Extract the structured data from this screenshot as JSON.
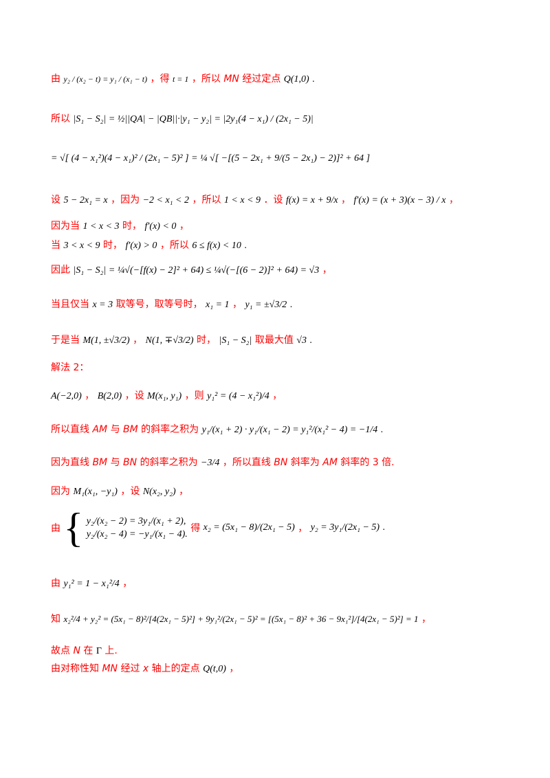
{
  "lines": {
    "l1": {
      "t1": "由",
      "t2": "，得",
      "t3": "，所以",
      "t4": "经过定点",
      "f1": "y₂ / (x₂ − t) = y₁ / (x₁ − t)",
      "eq": "t = 1",
      "mn": "MN",
      "q": "Q(1,0)",
      "end": "."
    },
    "l2": {
      "t1": "所以",
      "expr": "|S₁ − S₂| = ½||QA| − |QB||·|y₁ − y₂| = |2y₁(4 − x₁) / (2x₁ − 5)|"
    },
    "l3": {
      "expr": "= √[ (4 − x₁²)(4 − x₁)² / (2x₁ − 5)² ] = ¼ √[ −[(5 − 2x₁ + 9/(5 − 2x₁) − 2)]² + 64 ]"
    },
    "l4": {
      "t1": "设",
      "a": "5 − 2x₁ = x",
      "t2": "，因为",
      "b": "−2 < x₁ < 2",
      "t3": "，所以",
      "c": "1 < x < 9",
      "t4": "．设",
      "d": "f(x) = x + 9/x",
      "t5": "，",
      "e": "f′(x) = (x + 3)(x − 3) / x",
      "t6": "，"
    },
    "l5": {
      "t1": "因为当",
      "a": "1 < x < 3",
      "t2": "时，",
      "b": "f′(x) < 0",
      "t3": "，"
    },
    "l6": {
      "t1": "当",
      "a": "3 < x < 9",
      "t2": "时，",
      "b": "f′(x) > 0",
      "t3": "，所以",
      "c": "6 ≤ f(x) < 10",
      "t4": "."
    },
    "l7": {
      "t1": "因此",
      "expr": "|S₁ − S₂| = ¼√(−[f(x) − 2]² + 64) ≤ ¼√(−[(6 − 2)]² + 64) = √3",
      "t2": "，"
    },
    "l8": {
      "t1": "当且仅当",
      "a": "x = 3",
      "t2": "取等号，取等号时，",
      "b": "x₁ = 1",
      "t3": "，",
      "c": "y₁ = ±√3/2",
      "t4": "."
    },
    "l9": {
      "t1": "于是当",
      "a": "M(1, ±√3/2)",
      "t2": "，",
      "b": "N(1, ∓√3/2)",
      "t3": "时，",
      "c": "|S₁ − S₂|",
      "t4": "取最大值",
      "d": "√3",
      "t5": "."
    },
    "l10": {
      "t1": "解法 2："
    },
    "l11": {
      "a": "A(−2,0)",
      "t1": "，",
      "b": "B(2,0)",
      "t2": "，设",
      "c": "M(x₁, y₁)",
      "t3": "，则",
      "d": "y₁² = (4 − x₁²)/4",
      "t4": "，"
    },
    "l12": {
      "t1": "所以直线",
      "am": "AM",
      "t2": "与",
      "bm": "BM",
      "t3": "的斜率之积为",
      "expr": "y₁/(x₁ + 2) · y₁/(x₁ − 2) = y₁²/(x₁² − 4) = −1/4",
      "t4": "."
    },
    "l13": {
      "t1": "因为直线",
      "bm": "BM",
      "t2": "与",
      "bn": "BN",
      "t3": "的斜率之积为",
      "a": "−3/4",
      "t4": "，所以直线",
      "bn2": "BN",
      "t5": "斜率为",
      "am": "AM",
      "t6": "斜率的 3 倍."
    },
    "l14": {
      "t1": "因为",
      "a": "M₁(x₁, −y₁)",
      "t2": "，设",
      "b": "N(x₂, y₂)",
      "t3": "，"
    },
    "l15": {
      "t1": "由",
      "e1": "y₂/(x₂ − 2) = 3y₁/(x₁ + 2),",
      "e2": "y₂/(x₂ − 4) = −y₁/(x₁ − 4).",
      "t2": "得",
      "a": "x₂ = (5x₁ − 8)/(2x₁ − 5)",
      "t3": "，",
      "b": "y₂ = 3y₁/(2x₁ − 5)",
      "t4": "."
    },
    "l16": {
      "t1": "由",
      "a": "y₁² = 1 − x₁²/4",
      "t2": "，"
    },
    "l17": {
      "t1": "知",
      "expr": "x₂²/4 + y₂² = (5x₁ − 8)²/[4(2x₁ − 5)²] + 9y₁²/(2x₁ − 5)² = [(5x₁ − 8)² + 36 − 9x₁²]/[4(2x₁ − 5)²] = 1",
      "t2": "，"
    },
    "l18": {
      "t1": "故点",
      "n": "N",
      "t2": "在",
      "g": "Γ",
      "t3": "上."
    },
    "l19": {
      "t1": "由对称性知",
      "mn": "MN",
      "t2": "经过",
      "x": "x",
      "t3": "轴上的定点",
      "q": "Q(t,0)",
      "t4": "，"
    }
  }
}
